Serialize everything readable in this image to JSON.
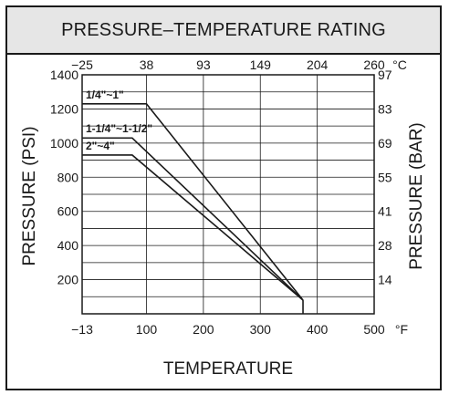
{
  "chart_data": {
    "type": "line",
    "title": "PRESSURE–TEMPERATURE RATING",
    "xlabel": "TEMPERATURE",
    "ylabel": "PRESSURE  (PSI)",
    "y2label": "PRESSURE  (BAR)",
    "x_unit": "°F",
    "x2_unit": "°C",
    "xlim": [
      -13,
      500
    ],
    "ylim": [
      0,
      1400
    ],
    "x_ticks": [
      "−13",
      "100",
      "200",
      "300",
      "400",
      "500"
    ],
    "x_tick_values": [
      -13,
      100,
      200,
      300,
      400,
      500
    ],
    "x2_ticks": [
      "−25",
      "38",
      "93",
      "149",
      "204",
      "260"
    ],
    "y_ticks": [
      "1400",
      "1200",
      "1000",
      "800",
      "600",
      "400",
      "200"
    ],
    "y_tick_values": [
      1400,
      1200,
      1000,
      800,
      600,
      400,
      200
    ],
    "y2_ticks": [
      "97",
      "83",
      "69",
      "55",
      "41",
      "28",
      "14"
    ],
    "grid": true,
    "series": [
      {
        "name": "1/4\"~1\"",
        "x": [
          -13,
          100,
          375
        ],
        "y": [
          1230,
          1230,
          80
        ]
      },
      {
        "name": "1-1/4\"~1-1/2\"",
        "x": [
          -13,
          75,
          375
        ],
        "y": [
          1030,
          1030,
          80
        ]
      },
      {
        "name": "2\"~4\"",
        "x": [
          -13,
          75,
          375
        ],
        "y": [
          930,
          930,
          80
        ]
      }
    ],
    "end_drop": {
      "x": 375,
      "y_from": 80,
      "y_to": 0
    }
  }
}
